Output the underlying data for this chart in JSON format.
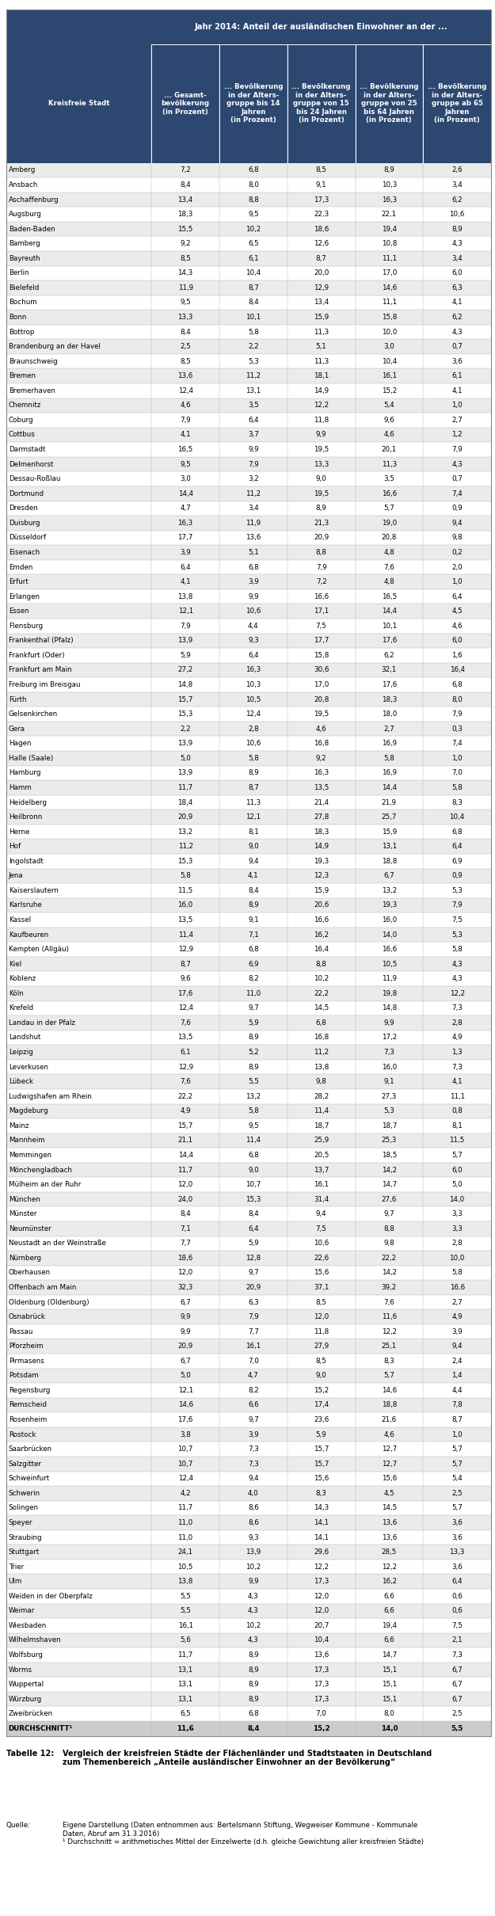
{
  "title_header": "Jahr 2014: Anteil der ausländischen Einwohner an der ...",
  "col_header_0": "Kreisfreie Stadt",
  "col_header_1": "... Gesamt-\nbevölkerung\n(in Prozent)",
  "col_header_2": "... Bevölkerung\nin der Alters-\ngruppe bis 14\nJahren\n(in Prozent)",
  "col_header_3": "... Bevölkerung\nin der Alters-\ngruppe von 15\nbis 24 Jahren\n(in Prozent)",
  "col_header_4": "... Bevölkerung\nin der Alters-\ngruppe von 25\nbis 64 Jahren\n(in Prozent)",
  "col_header_5": "... Bevölkerung\nin der Alters-\ngruppe ab 65\nJahren\n(in Prozent)",
  "rows": [
    [
      "Amberg",
      7.2,
      6.8,
      8.5,
      8.9,
      2.6
    ],
    [
      "Ansbach",
      8.4,
      8.0,
      9.1,
      10.3,
      3.4
    ],
    [
      "Aschaffenburg",
      13.4,
      8.8,
      17.3,
      16.3,
      6.2
    ],
    [
      "Augsburg",
      18.3,
      9.5,
      22.3,
      22.1,
      10.6
    ],
    [
      "Baden-Baden",
      15.5,
      10.2,
      18.6,
      19.4,
      8.9
    ],
    [
      "Bamberg",
      9.2,
      6.5,
      12.6,
      10.8,
      4.3
    ],
    [
      "Bayreuth",
      8.5,
      6.1,
      8.7,
      11.1,
      3.4
    ],
    [
      "Berlin",
      14.3,
      10.4,
      20.0,
      17.0,
      6.0
    ],
    [
      "Bielefeld",
      11.9,
      8.7,
      12.9,
      14.6,
      6.3
    ],
    [
      "Bochum",
      9.5,
      8.4,
      13.4,
      11.1,
      4.1
    ],
    [
      "Bonn",
      13.3,
      10.1,
      15.9,
      15.8,
      6.2
    ],
    [
      "Bottrop",
      8.4,
      5.8,
      11.3,
      10.0,
      4.3
    ],
    [
      "Brandenburg an der Havel",
      2.5,
      2.2,
      5.1,
      3.0,
      0.7
    ],
    [
      "Braunschweig",
      8.5,
      5.3,
      11.3,
      10.4,
      3.6
    ],
    [
      "Bremen",
      13.6,
      11.2,
      18.1,
      16.1,
      6.1
    ],
    [
      "Bremerhaven",
      12.4,
      13.1,
      14.9,
      15.2,
      4.1
    ],
    [
      "Chemnitz",
      4.6,
      3.5,
      12.2,
      5.4,
      1.0
    ],
    [
      "Coburg",
      7.9,
      6.4,
      11.8,
      9.6,
      2.7
    ],
    [
      "Cottbus",
      4.1,
      3.7,
      9.9,
      4.6,
      1.2
    ],
    [
      "Darmstadt",
      16.5,
      9.9,
      19.5,
      20.1,
      7.9
    ],
    [
      "Delmenhorst",
      9.5,
      7.9,
      13.3,
      11.3,
      4.3
    ],
    [
      "Dessau-Roßlau",
      3.0,
      3.2,
      9.0,
      3.5,
      0.7
    ],
    [
      "Dortmund",
      14.4,
      11.2,
      19.5,
      16.6,
      7.4
    ],
    [
      "Dresden",
      4.7,
      3.4,
      8.9,
      5.7,
      0.9
    ],
    [
      "Duisburg",
      16.3,
      11.9,
      21.3,
      19.0,
      9.4
    ],
    [
      "Düsseldorf",
      17.7,
      13.6,
      20.9,
      20.8,
      9.8
    ],
    [
      "Eisenach",
      3.9,
      5.1,
      8.8,
      4.8,
      0.2
    ],
    [
      "Emden",
      6.4,
      6.8,
      7.9,
      7.6,
      2.0
    ],
    [
      "Erfurt",
      4.1,
      3.9,
      7.2,
      4.8,
      1.0
    ],
    [
      "Erlangen",
      13.8,
      9.9,
      16.6,
      16.5,
      6.4
    ],
    [
      "Essen",
      12.1,
      10.6,
      17.1,
      14.4,
      4.5
    ],
    [
      "Flensburg",
      7.9,
      4.4,
      7.5,
      10.1,
      4.6
    ],
    [
      "Frankenthal (Pfalz)",
      13.9,
      9.3,
      17.7,
      17.6,
      6.0
    ],
    [
      "Frankfurt (Oder)",
      5.9,
      6.4,
      15.8,
      6.2,
      1.6
    ],
    [
      "Frankfurt am Main",
      27.2,
      16.3,
      30.6,
      32.1,
      16.4
    ],
    [
      "Freiburg im Breisgau",
      14.8,
      10.3,
      17.0,
      17.6,
      6.8
    ],
    [
      "Fürth",
      15.7,
      10.5,
      20.8,
      18.3,
      8.0
    ],
    [
      "Gelsenkirchen",
      15.3,
      12.4,
      19.5,
      18.0,
      7.9
    ],
    [
      "Gera",
      2.2,
      2.8,
      4.6,
      2.7,
      0.3
    ],
    [
      "Hagen",
      13.9,
      10.6,
      16.8,
      16.9,
      7.4
    ],
    [
      "Halle (Saale)",
      5.0,
      5.8,
      9.2,
      5.8,
      1.0
    ],
    [
      "Hamburg",
      13.9,
      8.9,
      16.3,
      16.9,
      7.0
    ],
    [
      "Hamm",
      11.7,
      8.7,
      13.5,
      14.4,
      5.8
    ],
    [
      "Heidelberg",
      18.4,
      11.3,
      21.4,
      21.9,
      8.3
    ],
    [
      "Heilbronn",
      20.9,
      12.1,
      27.8,
      25.7,
      10.4
    ],
    [
      "Herne",
      13.2,
      8.1,
      18.3,
      15.9,
      6.8
    ],
    [
      "Hof",
      11.2,
      9.0,
      14.9,
      13.1,
      6.4
    ],
    [
      "Ingolstadt",
      15.3,
      9.4,
      19.3,
      18.8,
      6.9
    ],
    [
      "Jena",
      5.8,
      4.1,
      12.3,
      6.7,
      0.9
    ],
    [
      "Kaiserslautern",
      11.5,
      8.4,
      15.9,
      13.2,
      5.3
    ],
    [
      "Karlsruhe",
      16.0,
      8.9,
      20.6,
      19.3,
      7.9
    ],
    [
      "Kassel",
      13.5,
      9.1,
      16.6,
      16.0,
      7.5
    ],
    [
      "Kaufbeuren",
      11.4,
      7.1,
      16.2,
      14.0,
      5.3
    ],
    [
      "Kempten (Allgäu)",
      12.9,
      6.8,
      16.4,
      16.6,
      5.8
    ],
    [
      "Kiel",
      8.7,
      6.9,
      8.8,
      10.5,
      4.3
    ],
    [
      "Koblenz",
      9.6,
      8.2,
      10.2,
      11.9,
      4.3
    ],
    [
      "Köln",
      17.6,
      11.0,
      22.2,
      19.8,
      12.2
    ],
    [
      "Krefeld",
      12.4,
      9.7,
      14.5,
      14.8,
      7.3
    ],
    [
      "Landau in der Pfalz",
      7.6,
      5.9,
      6.8,
      9.9,
      2.8
    ],
    [
      "Landshut",
      13.5,
      8.9,
      16.8,
      17.2,
      4.9
    ],
    [
      "Leipzig",
      6.1,
      5.2,
      11.2,
      7.3,
      1.3
    ],
    [
      "Leverkusen",
      12.9,
      8.9,
      13.8,
      16.0,
      7.3
    ],
    [
      "Lübeck",
      7.6,
      5.5,
      9.8,
      9.1,
      4.1
    ],
    [
      "Ludwigshafen am Rhein",
      22.2,
      13.2,
      28.2,
      27.3,
      11.1
    ],
    [
      "Magdeburg",
      4.9,
      5.8,
      11.4,
      5.3,
      0.8
    ],
    [
      "Mainz",
      15.7,
      9.5,
      18.7,
      18.7,
      8.1
    ],
    [
      "Mannheim",
      21.1,
      11.4,
      25.9,
      25.3,
      11.5
    ],
    [
      "Memmingen",
      14.4,
      6.8,
      20.5,
      18.5,
      5.7
    ],
    [
      "Mönchengladbach",
      11.7,
      9.0,
      13.7,
      14.2,
      6.0
    ],
    [
      "Mülheim an der Ruhr",
      12.0,
      10.7,
      16.1,
      14.7,
      5.0
    ],
    [
      "München",
      24.0,
      15.3,
      31.4,
      27.6,
      14.0
    ],
    [
      "Münster",
      8.4,
      8.4,
      9.4,
      9.7,
      3.3
    ],
    [
      "Neumünster",
      7.1,
      6.4,
      7.5,
      8.8,
      3.3
    ],
    [
      "Neustadt an der Weinstraße",
      7.7,
      5.9,
      10.6,
      9.8,
      2.8
    ],
    [
      "Nürnberg",
      18.6,
      12.8,
      22.6,
      22.2,
      10.0
    ],
    [
      "Oberhausen",
      12.0,
      9.7,
      15.6,
      14.2,
      5.8
    ],
    [
      "Offenbach am Main",
      32.3,
      20.9,
      37.1,
      39.2,
      16.6
    ],
    [
      "Oldenburg (Oldenburg)",
      6.7,
      6.3,
      8.5,
      7.6,
      2.7
    ],
    [
      "Osnabrück",
      9.9,
      7.9,
      12.0,
      11.6,
      4.9
    ],
    [
      "Passau",
      9.9,
      7.7,
      11.8,
      12.2,
      3.9
    ],
    [
      "Pforzheim",
      20.9,
      16.1,
      27.9,
      25.1,
      9.4
    ],
    [
      "Pirmasens",
      6.7,
      7.0,
      8.5,
      8.3,
      2.4
    ],
    [
      "Potsdam",
      5.0,
      4.7,
      9.0,
      5.7,
      1.4
    ],
    [
      "Regensburg",
      12.1,
      8.2,
      15.2,
      14.6,
      4.4
    ],
    [
      "Remscheid",
      14.6,
      6.6,
      17.4,
      18.8,
      7.8
    ],
    [
      "Rosenheim",
      17.6,
      9.7,
      23.6,
      21.6,
      8.7
    ],
    [
      "Rostock",
      3.8,
      3.9,
      5.9,
      4.6,
      1.0
    ],
    [
      "Saarbrücken",
      10.7,
      7.3,
      15.7,
      12.7,
      5.7
    ],
    [
      "Salzgitter",
      10.7,
      7.3,
      15.7,
      12.7,
      5.7
    ],
    [
      "Schweinfurt",
      12.4,
      9.4,
      15.6,
      15.6,
      5.4
    ],
    [
      "Schwerin",
      4.2,
      4.0,
      8.3,
      4.5,
      2.5
    ],
    [
      "Solingen",
      11.7,
      8.6,
      14.3,
      14.5,
      5.7
    ],
    [
      "Speyer",
      11.0,
      8.6,
      14.1,
      13.6,
      3.6
    ],
    [
      "Straubing",
      11.0,
      9.3,
      14.1,
      13.6,
      3.6
    ],
    [
      "Stuttgart",
      24.1,
      13.9,
      29.6,
      28.5,
      13.3
    ],
    [
      "Trier",
      10.5,
      10.2,
      12.2,
      12.2,
      3.6
    ],
    [
      "Ulm",
      13.8,
      9.9,
      17.3,
      16.2,
      6.4
    ],
    [
      "Weiden in der Oberpfalz",
      5.5,
      4.3,
      12.0,
      6.6,
      0.6
    ],
    [
      "Weimar",
      5.5,
      4.3,
      12.0,
      6.6,
      0.6
    ],
    [
      "Wiesbaden",
      16.1,
      10.2,
      20.7,
      19.4,
      7.5
    ],
    [
      "Wilhelmshaven",
      5.6,
      4.3,
      10.4,
      6.6,
      2.1
    ],
    [
      "Wolfsburg",
      11.7,
      8.9,
      13.6,
      14.7,
      7.3
    ],
    [
      "Worms",
      13.1,
      8.9,
      17.3,
      15.1,
      6.7
    ],
    [
      "Wuppertal",
      13.1,
      8.9,
      17.3,
      15.1,
      6.7
    ],
    [
      "Würzburg",
      13.1,
      8.9,
      17.3,
      15.1,
      6.7
    ],
    [
      "Zweibrücken",
      6.5,
      6.8,
      7.0,
      8.0,
      2.5
    ],
    [
      "DURCHSCHNITT¹",
      11.6,
      8.4,
      15.2,
      14.0,
      5.5
    ]
  ],
  "header_bg": "#2C4770",
  "header_text": "#FFFFFF",
  "row_bg_odd": "#EBEBEB",
  "row_bg_even": "#FFFFFF",
  "row_bg_last": "#CCCCCC"
}
